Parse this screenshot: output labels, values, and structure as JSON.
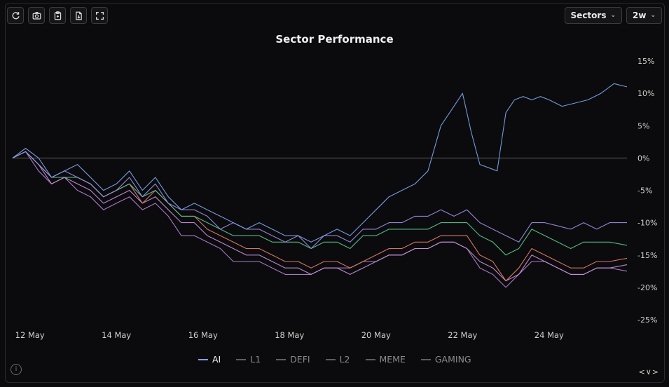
{
  "toolbar": {
    "icons": [
      "refresh-icon",
      "camera-icon",
      "clipboard-icon",
      "export-file-icon",
      "fullscreen-icon"
    ]
  },
  "selects": {
    "group": "Sectors",
    "range": "2w"
  },
  "legend": [
    {
      "name": "AI",
      "color": "#7aa2e8",
      "active": true
    },
    {
      "name": "L1",
      "color": "#9a8ce0",
      "active": false
    },
    {
      "name": "DEFI",
      "color": "#55c48a",
      "active": false
    },
    {
      "name": "L2",
      "color": "#e07a6a",
      "active": false
    },
    {
      "name": "MEME",
      "color": "#c78fd8",
      "active": false
    },
    {
      "name": "GAMING",
      "color": "#b07fce",
      "active": false
    }
  ],
  "nav": "<∨>",
  "chart_data": {
    "type": "line",
    "title": "Sector Performance",
    "x_tick_labels": [
      "12 May",
      "14 May",
      "16 May",
      "18 May",
      "20 May",
      "22 May",
      "24 May"
    ],
    "x_tick_days": [
      1,
      3,
      5,
      7,
      9,
      11,
      13
    ],
    "xlim_days": [
      0.6,
      14.8
    ],
    "y_tick_labels": [
      "15%",
      "10%",
      "5%",
      "0%",
      "-5%",
      "-10%",
      "-15%",
      "-20%",
      "-25%"
    ],
    "y_tick_values": [
      15,
      10,
      5,
      0,
      -5,
      -10,
      -15,
      -20,
      -25
    ],
    "ylim": [
      -25,
      15
    ],
    "y_axis_side": "right",
    "zero_line": true,
    "legend_position": "bottom",
    "colors": {
      "AI": "#7aa2e8",
      "L1": "#9a8ce0",
      "DEFI": "#55c48a",
      "L2": "#e07a6a",
      "MEME": "#c78fd8",
      "GAMING": "#b07fce"
    },
    "series": [
      {
        "name": "AI",
        "x": [
          0.6,
          0.9,
          1.2,
          1.5,
          1.8,
          2.1,
          2.4,
          2.7,
          3.0,
          3.3,
          3.6,
          3.9,
          4.2,
          4.5,
          4.8,
          5.1,
          5.4,
          5.7,
          6.0,
          6.3,
          6.6,
          6.9,
          7.2,
          7.5,
          7.8,
          8.1,
          8.4,
          8.7,
          9.0,
          9.3,
          9.6,
          9.9,
          10.2,
          10.5,
          10.8,
          11.0,
          11.2,
          11.4,
          11.6,
          11.8,
          12.0,
          12.2,
          12.4,
          12.6,
          12.8,
          13.0,
          13.3,
          13.6,
          13.9,
          14.2,
          14.5,
          14.8
        ],
        "values": [
          0,
          1.5,
          0,
          -3,
          -2,
          -1,
          -3,
          -5,
          -4,
          -2,
          -5,
          -3,
          -6,
          -8,
          -7,
          -8,
          -9,
          -10,
          -11,
          -10,
          -11,
          -12,
          -12,
          -13,
          -12,
          -11,
          -12,
          -10,
          -8,
          -6,
          -5,
          -4,
          -2,
          5,
          8,
          10,
          4,
          -1,
          -1.5,
          -2,
          7,
          9,
          9.5,
          9,
          9.5,
          9,
          8,
          8.5,
          9,
          10,
          11.5,
          11
        ],
        "label": "AI"
      },
      {
        "name": "L1",
        "x": [
          0.6,
          0.9,
          1.2,
          1.5,
          1.8,
          2.1,
          2.4,
          2.7,
          3.0,
          3.3,
          3.6,
          3.9,
          4.2,
          4.5,
          4.8,
          5.1,
          5.4,
          5.7,
          6.0,
          6.3,
          6.6,
          6.9,
          7.2,
          7.5,
          7.8,
          8.1,
          8.4,
          8.7,
          9.0,
          9.3,
          9.6,
          9.9,
          10.2,
          10.5,
          10.8,
          11.1,
          11.4,
          11.7,
          12.0,
          12.3,
          12.6,
          12.9,
          13.2,
          13.5,
          13.8,
          14.1,
          14.4,
          14.8
        ],
        "values": [
          0,
          1,
          -1,
          -3,
          -2,
          -3,
          -4,
          -6,
          -5,
          -3,
          -6,
          -4,
          -7,
          -8,
          -8,
          -9,
          -11,
          -10,
          -11,
          -11,
          -12,
          -13,
          -12,
          -14,
          -12,
          -12,
          -13,
          -11,
          -11,
          -10,
          -10,
          -9,
          -9,
          -8,
          -9,
          -8,
          -10,
          -11,
          -12,
          -13,
          -10,
          -10,
          -10.5,
          -11,
          -10,
          -11,
          -10,
          -10
        ],
        "label": "L1"
      },
      {
        "name": "DEFI",
        "x": [
          0.6,
          0.9,
          1.2,
          1.5,
          1.8,
          2.1,
          2.4,
          2.7,
          3.0,
          3.3,
          3.6,
          3.9,
          4.2,
          4.5,
          4.8,
          5.1,
          5.4,
          5.7,
          6.0,
          6.3,
          6.6,
          6.9,
          7.2,
          7.5,
          7.8,
          8.1,
          8.4,
          8.7,
          9.0,
          9.3,
          9.6,
          9.9,
          10.2,
          10.5,
          10.8,
          11.1,
          11.4,
          11.7,
          12.0,
          12.3,
          12.6,
          12.9,
          13.2,
          13.5,
          13.8,
          14.1,
          14.4,
          14.8
        ],
        "values": [
          0,
          1,
          -1,
          -3,
          -3,
          -3,
          -4,
          -6,
          -5,
          -4,
          -6,
          -5,
          -7,
          -9,
          -9,
          -10,
          -11,
          -12,
          -12,
          -12,
          -13,
          -13,
          -13,
          -14,
          -13,
          -13,
          -14,
          -12,
          -12,
          -11,
          -11,
          -11,
          -11,
          -10,
          -10,
          -10,
          -12,
          -13,
          -15,
          -14,
          -11,
          -12,
          -13,
          -14,
          -13,
          -13,
          -13,
          -13.5
        ],
        "label": "DEFI"
      },
      {
        "name": "L2",
        "x": [
          0.6,
          0.9,
          1.2,
          1.5,
          1.8,
          2.1,
          2.4,
          2.7,
          3.0,
          3.3,
          3.6,
          3.9,
          4.2,
          4.5,
          4.8,
          5.1,
          5.4,
          5.7,
          6.0,
          6.3,
          6.6,
          6.9,
          7.2,
          7.5,
          7.8,
          8.1,
          8.4,
          8.7,
          9.0,
          9.3,
          9.6,
          9.9,
          10.2,
          10.5,
          10.8,
          11.1,
          11.4,
          11.7,
          12.0,
          12.3,
          12.6,
          12.9,
          13.2,
          13.5,
          13.8,
          14.1,
          14.4,
          14.8
        ],
        "values": [
          0,
          1,
          -1,
          -3,
          -3,
          -3,
          -4,
          -6,
          -5,
          -4,
          -7,
          -5,
          -7,
          -9,
          -9,
          -11,
          -12,
          -13,
          -14,
          -14,
          -15,
          -16,
          -16,
          -17,
          -16,
          -16,
          -17,
          -16,
          -15,
          -14,
          -14,
          -13,
          -13,
          -12,
          -12,
          -12,
          -15,
          -16,
          -19,
          -17,
          -14,
          -15,
          -16,
          -17,
          -17,
          -16,
          -16,
          -15.5
        ],
        "label": "L2"
      },
      {
        "name": "MEME",
        "x": [
          0.6,
          0.9,
          1.2,
          1.5,
          1.8,
          2.1,
          2.4,
          2.7,
          3.0,
          3.3,
          3.6,
          3.9,
          4.2,
          4.5,
          4.8,
          5.1,
          5.4,
          5.7,
          6.0,
          6.3,
          6.6,
          6.9,
          7.2,
          7.5,
          7.8,
          8.1,
          8.4,
          8.7,
          9.0,
          9.3,
          9.6,
          9.9,
          10.2,
          10.5,
          10.8,
          11.1,
          11.4,
          11.7,
          12.0,
          12.3,
          12.6,
          12.9,
          13.2,
          13.5,
          13.8,
          14.1,
          14.4,
          14.8
        ],
        "values": [
          0,
          1,
          -1,
          -4,
          -3,
          -4,
          -5,
          -7,
          -6,
          -5,
          -7,
          -6,
          -8,
          -10,
          -10,
          -12,
          -13,
          -14,
          -15,
          -15,
          -16,
          -17,
          -17,
          -18,
          -17,
          -17,
          -18,
          -17,
          -16,
          -15,
          -15,
          -14,
          -14,
          -13,
          -13,
          -14,
          -16,
          -17,
          -19,
          -18,
          -15,
          -16,
          -17,
          -18,
          -18,
          -17,
          -17,
          -16.5
        ],
        "label": "MEME"
      },
      {
        "name": "GAMING",
        "x": [
          0.6,
          0.9,
          1.2,
          1.5,
          1.8,
          2.1,
          2.4,
          2.7,
          3.0,
          3.3,
          3.6,
          3.9,
          4.2,
          4.5,
          4.8,
          5.1,
          5.4,
          5.7,
          6.0,
          6.3,
          6.6,
          6.9,
          7.2,
          7.5,
          7.8,
          8.1,
          8.4,
          8.7,
          9.0,
          9.3,
          9.6,
          9.9,
          10.2,
          10.5,
          10.8,
          11.1,
          11.4,
          11.7,
          12.0,
          12.3,
          12.6,
          12.9,
          13.2,
          13.5,
          13.8,
          14.1,
          14.4,
          14.8
        ],
        "values": [
          0,
          1,
          -2,
          -4,
          -3,
          -5,
          -6,
          -8,
          -7,
          -6,
          -8,
          -7,
          -9,
          -12,
          -12,
          -13,
          -14,
          -16,
          -16,
          -16,
          -17,
          -18,
          -18,
          -18,
          -17,
          -17,
          -17,
          -16,
          -16,
          -15,
          -15,
          -14,
          -14,
          -13,
          -13,
          -14,
          -17,
          -18,
          -20,
          -18,
          -16,
          -16,
          -17,
          -18,
          -18,
          -17,
          -17,
          -17.5
        ],
        "label": "GAMING"
      }
    ]
  }
}
